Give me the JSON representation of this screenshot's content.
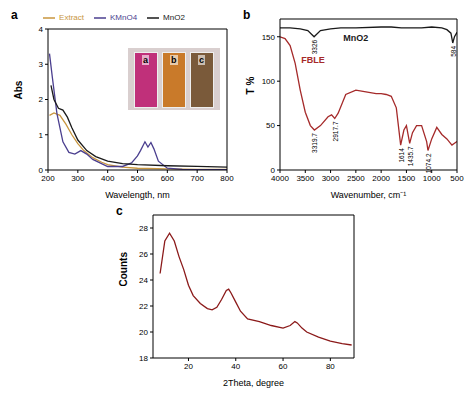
{
  "chart_data": [
    {
      "type": "line",
      "title": "a",
      "x_label": "Wavelength, nm",
      "y_label": "Abs",
      "xlim": [
        200,
        800
      ],
      "xticks": [
        200,
        300,
        400,
        500,
        600,
        700,
        800
      ],
      "ylim": [
        0,
        4
      ],
      "yticks": [
        0,
        1,
        2,
        3,
        4
      ],
      "legend": "top",
      "annotations": [
        "a",
        "b",
        "c"
      ],
      "series": [
        {
          "name": "Extract",
          "color": "#c8963e",
          "x": [
            205,
            220,
            240,
            260,
            280,
            300,
            320,
            350,
            380,
            400,
            450,
            500,
            600,
            700,
            800
          ],
          "values": [
            1.55,
            1.62,
            1.55,
            1.3,
            1.0,
            0.75,
            0.55,
            0.35,
            0.22,
            0.15,
            0.08,
            0.05,
            0.03,
            0.02,
            0.02
          ]
        },
        {
          "name": "KMnO4",
          "color": "#4b3f8f",
          "x": [
            205,
            215,
            230,
            250,
            270,
            290,
            310,
            330,
            350,
            400,
            450,
            480,
            500,
            510,
            525,
            535,
            545,
            555,
            570,
            600,
            650,
            700,
            800
          ],
          "values": [
            3.3,
            2.6,
            1.6,
            0.8,
            0.5,
            0.45,
            0.55,
            0.45,
            0.3,
            0.1,
            0.1,
            0.2,
            0.4,
            0.55,
            0.8,
            0.65,
            0.78,
            0.6,
            0.25,
            0.05,
            0.02,
            0.01,
            0.01
          ]
        },
        {
          "name": "MnO2",
          "color": "#1a1a1a",
          "x": [
            210,
            220,
            235,
            250,
            265,
            280,
            300,
            330,
            360,
            400,
            450,
            500,
            600,
            700,
            800
          ],
          "values": [
            2.4,
            2.0,
            1.75,
            1.7,
            1.5,
            1.2,
            0.85,
            0.55,
            0.38,
            0.25,
            0.18,
            0.15,
            0.12,
            0.1,
            0.08
          ]
        }
      ]
    },
    {
      "type": "line",
      "title": "b",
      "x_label": "Wavenumber, cm⁻¹",
      "y_label": "T %",
      "xlim": [
        4000,
        500
      ],
      "xticks": [
        4000,
        3500,
        3000,
        2500,
        2000,
        1500,
        1000,
        500
      ],
      "ylim": [
        0,
        170
      ],
      "yticks": [
        0,
        50,
        100,
        150
      ],
      "annotations": [
        {
          "text": "3326",
          "x": 3326,
          "y": 150
        },
        {
          "text": "584",
          "x": 584,
          "y": 143
        },
        {
          "text": "3319.7",
          "x": 3319.7,
          "y": 45
        },
        {
          "text": "2917.7",
          "x": 2917.7,
          "y": 58
        },
        {
          "text": "1614",
          "x": 1614,
          "y": 28
        },
        {
          "text": "1435.7",
          "x": 1435.7,
          "y": 30
        },
        {
          "text": "1074.2",
          "x": 1074.2,
          "y": 22
        }
      ],
      "series": [
        {
          "name": "MnO2",
          "color": "#1a1a1a",
          "x": [
            4000,
            3800,
            3600,
            3450,
            3326,
            3200,
            3000,
            2800,
            2500,
            2000,
            1800,
            1600,
            1400,
            1200,
            1000,
            800,
            700,
            620,
            584,
            550,
            500
          ],
          "values": [
            160,
            160,
            159,
            157,
            150,
            157,
            159,
            160,
            160,
            161,
            161,
            160,
            160,
            160,
            161,
            160,
            158,
            154,
            143,
            150,
            155
          ]
        },
        {
          "name": "FBLE",
          "color": "#a52a2a",
          "x": [
            4000,
            3900,
            3800,
            3700,
            3600,
            3500,
            3400,
            3319.7,
            3200,
            3050,
            2980,
            2917.7,
            2850,
            2700,
            2500,
            2300,
            2100,
            2000,
            1900,
            1800,
            1700,
            1614,
            1550,
            1500,
            1435.7,
            1380,
            1300,
            1200,
            1100,
            1074.2,
            1000,
            900,
            800,
            700,
            600,
            500
          ],
          "values": [
            150,
            148,
            140,
            120,
            90,
            65,
            50,
            45,
            50,
            60,
            62,
            58,
            64,
            85,
            90,
            88,
            86,
            86,
            85,
            83,
            70,
            28,
            45,
            50,
            30,
            42,
            50,
            50,
            32,
            22,
            35,
            48,
            40,
            35,
            28,
            32
          ]
        }
      ]
    },
    {
      "type": "line",
      "title": "c",
      "x_label": "2Theta, degree",
      "y_label": "Counts",
      "xlim": [
        5,
        90
      ],
      "xticks": [
        20,
        40,
        60,
        80
      ],
      "ylim": [
        18,
        29
      ],
      "yticks": [
        18,
        20,
        22,
        24,
        26,
        28
      ],
      "series": [
        {
          "color": "#8b1a1a",
          "x": [
            8,
            10,
            12,
            14,
            16,
            18,
            20,
            22,
            25,
            28,
            30,
            32,
            34,
            36,
            37,
            38,
            40,
            42,
            45,
            50,
            55,
            60,
            63,
            65,
            66,
            68,
            70,
            75,
            80,
            85,
            89
          ],
          "values": [
            24.5,
            27.0,
            27.6,
            27.0,
            25.8,
            24.8,
            23.6,
            22.8,
            22.2,
            21.8,
            21.7,
            21.9,
            22.5,
            23.2,
            23.3,
            23.0,
            22.3,
            21.6,
            21.0,
            20.8,
            20.5,
            20.3,
            20.5,
            20.8,
            20.7,
            20.3,
            20.0,
            19.6,
            19.3,
            19.1,
            19.0
          ]
        }
      ]
    }
  ]
}
